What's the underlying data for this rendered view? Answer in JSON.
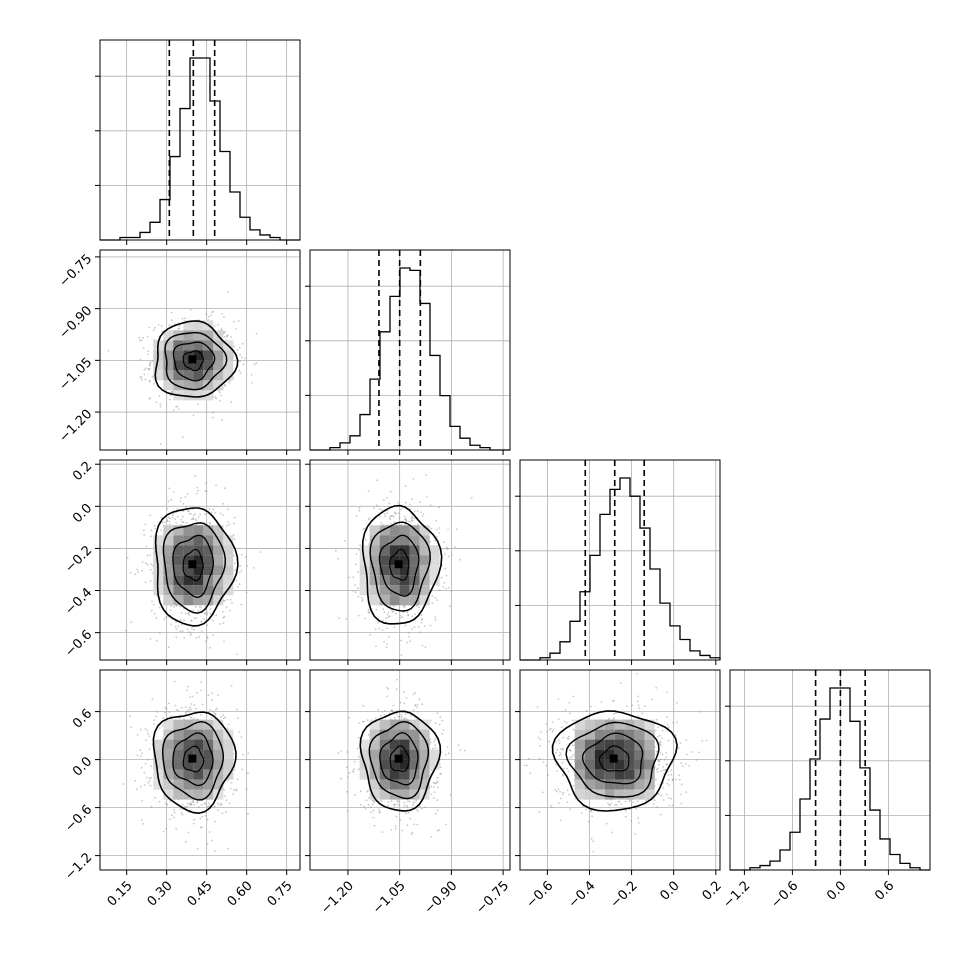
{
  "chart_data": {
    "type": "corner",
    "parameters": 4,
    "grid": true,
    "axis_labels": [
      "",
      "",
      "",
      ""
    ],
    "x_ticks": [
      [
        "0.15",
        "0.30",
        "0.45",
        "0.60",
        "0.75"
      ],
      [
        "−1.20",
        "−1.05",
        "−0.90",
        "−0.75"
      ],
      [
        "−0.6",
        "−0.4",
        "−0.2",
        "0.0",
        "0.2"
      ],
      [
        "−1.2",
        "−0.6",
        "0.0",
        "0.6"
      ]
    ],
    "y_ticks": {
      "row1": [
        "−0.75",
        "−0.90",
        "−1.05",
        "−1.20"
      ],
      "row2": [
        "0.2",
        "0.0",
        "−0.2",
        "−0.4",
        "−0.6"
      ],
      "row3": [
        "0.6",
        "0.0",
        "−0.6",
        "−1.2"
      ]
    },
    "x_tick_values": [
      [
        0.15,
        0.3,
        0.45,
        0.6,
        0.75
      ],
      [
        -1.2,
        -1.05,
        -0.9,
        -0.75
      ],
      [
        -0.6,
        -0.4,
        -0.2,
        0.0,
        0.2
      ],
      [
        -1.2,
        -0.6,
        0.0,
        0.6
      ]
    ],
    "ranges": [
      [
        0.05,
        0.8
      ],
      [
        -1.31,
        -0.73
      ],
      [
        -0.73,
        0.22
      ],
      [
        -1.38,
        1.12
      ]
    ],
    "means": [
      0.4,
      -1.05,
      -0.28,
      0.0
    ],
    "stds": [
      0.075,
      0.055,
      0.14,
      0.31
    ],
    "quantiles": [
      [
        0.31,
        0.4,
        0.48
      ],
      [
        -1.11,
        -1.05,
        -0.99
      ],
      [
        -0.42,
        -0.28,
        -0.14
      ],
      [
        -0.31,
        0.0,
        0.31
      ]
    ],
    "histograms": [
      [
        0,
        0,
        1,
        1,
        3,
        7,
        16,
        33,
        52,
        72,
        72,
        55,
        35,
        19,
        9,
        4,
        2,
        1,
        0,
        0
      ],
      [
        0,
        0,
        1,
        3,
        6,
        15,
        30,
        50,
        65,
        77,
        76,
        62,
        40,
        23,
        10,
        5,
        2,
        1,
        0,
        0
      ],
      [
        0,
        0,
        1,
        3,
        8,
        17,
        30,
        46,
        64,
        75,
        80,
        72,
        58,
        40,
        25,
        15,
        9,
        4,
        2,
        1
      ],
      [
        0,
        0,
        1,
        2,
        4,
        9,
        17,
        32,
        50,
        68,
        82,
        82,
        67,
        46,
        27,
        14,
        7,
        3,
        1,
        0
      ]
    ],
    "contour_levels": [
      "0.5σ",
      "1σ",
      "1.5σ",
      "2σ"
    ],
    "colors": {
      "line": "#000000",
      "points": "#9a9a9a",
      "grid": "#b0b0b0"
    }
  }
}
